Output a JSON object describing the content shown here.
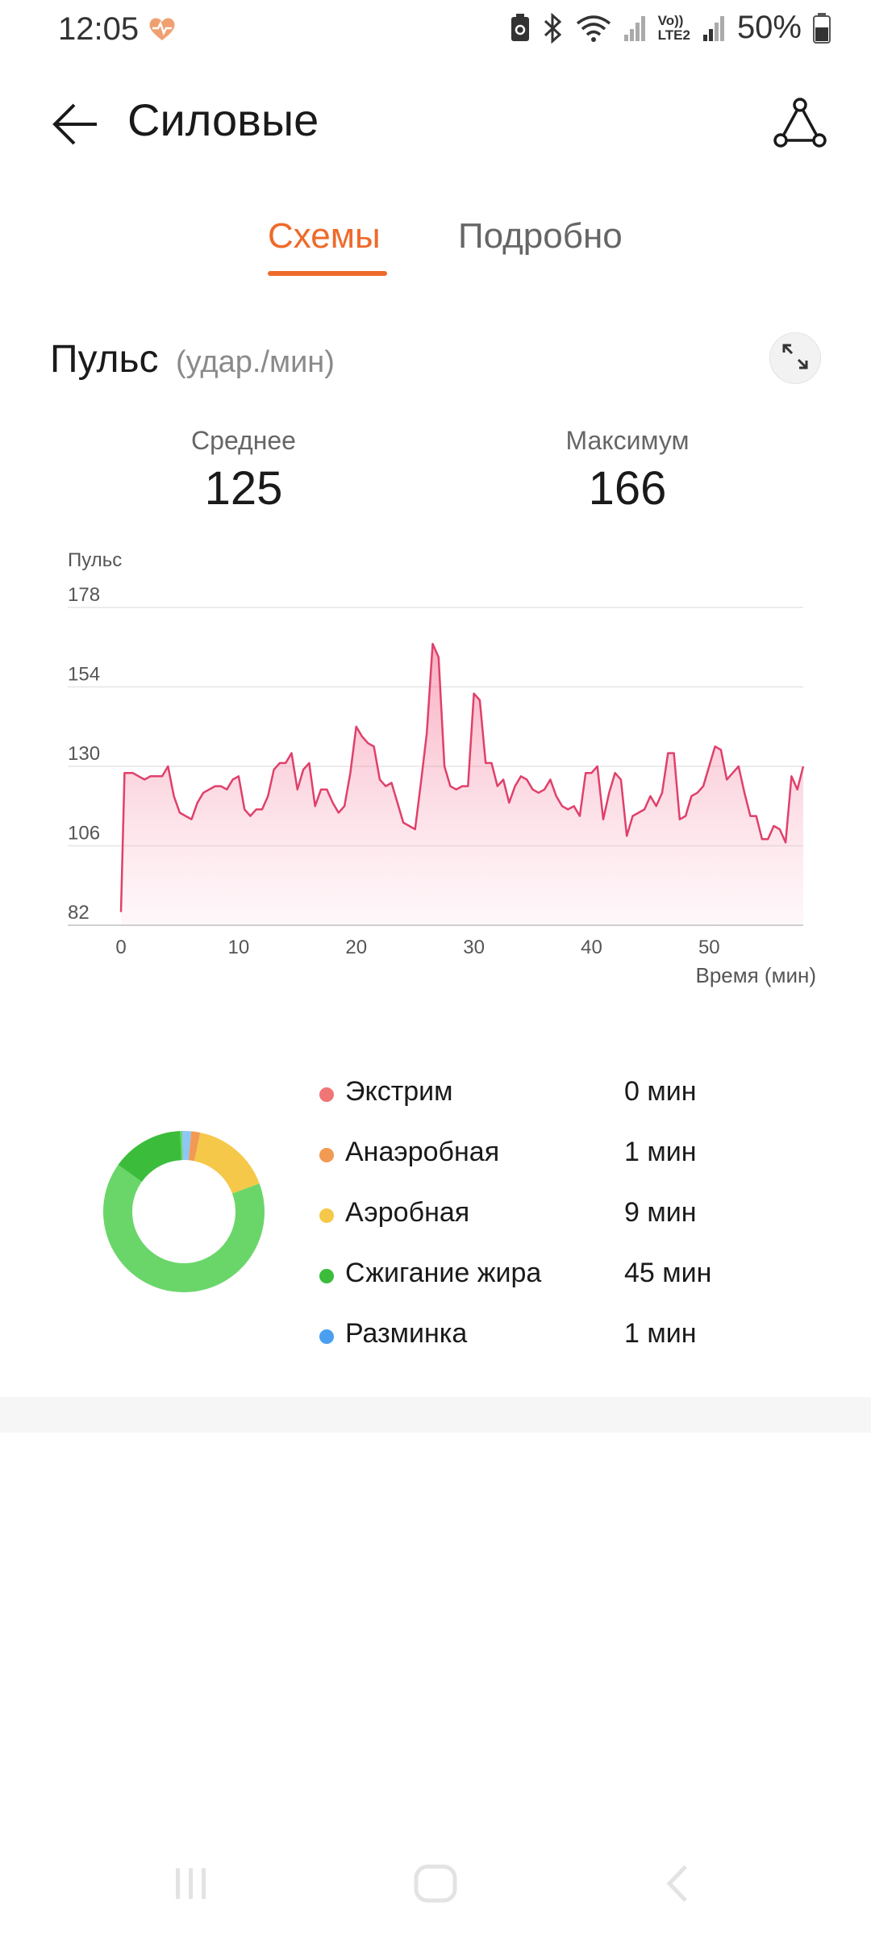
{
  "status_bar": {
    "time": "12:05",
    "lte_label_top": "Vo))",
    "lte_label_bottom": "LTE2",
    "battery_percent": "50%",
    "icons": [
      "heart-rate-icon",
      "battery-saver-icon",
      "bluetooth-icon",
      "wifi-icon",
      "signal-icon",
      "signal-icon-2",
      "battery-icon"
    ]
  },
  "header": {
    "title": "Силовые",
    "back_icon": "arrow-left-icon",
    "share_icon": "share-icon"
  },
  "tabs": [
    {
      "label": "Схемы",
      "active": true
    },
    {
      "label": "Подробно",
      "active": false
    }
  ],
  "pulse": {
    "title": "Пульс",
    "unit": "(удар./мин)",
    "avg_label": "Среднее",
    "avg_value": "125",
    "max_label": "Максимум",
    "max_value": "166"
  },
  "chart_data": {
    "type": "area",
    "ylabel": "Пульс",
    "xlabel": "Время (мин)",
    "yticks": [
      178,
      154,
      130,
      106,
      82
    ],
    "xticks": [
      0,
      10,
      20,
      30,
      40,
      50
    ],
    "ylim": [
      82,
      178
    ],
    "xlim": [
      0,
      58
    ],
    "grid": true,
    "color": "#e0406a",
    "series": [
      {
        "values": [
          [
            0,
            86
          ],
          [
            0.3,
            128
          ],
          [
            1,
            128
          ],
          [
            1.5,
            127
          ],
          [
            2,
            126
          ],
          [
            2.5,
            127
          ],
          [
            3,
            127
          ],
          [
            3.5,
            127
          ],
          [
            4,
            130
          ],
          [
            4.5,
            121
          ],
          [
            5,
            116
          ],
          [
            5.5,
            115
          ],
          [
            6,
            114
          ],
          [
            6.5,
            119
          ],
          [
            7,
            122
          ],
          [
            7.5,
            123
          ],
          [
            8,
            124
          ],
          [
            8.5,
            124
          ],
          [
            9,
            123
          ],
          [
            9.5,
            126
          ],
          [
            10,
            127
          ],
          [
            10.5,
            117
          ],
          [
            11,
            115
          ],
          [
            11.5,
            117
          ],
          [
            12,
            117
          ],
          [
            12.5,
            121
          ],
          [
            13,
            129
          ],
          [
            13.5,
            131
          ],
          [
            14,
            131
          ],
          [
            14.5,
            134
          ],
          [
            15,
            123
          ],
          [
            15.5,
            129
          ],
          [
            16,
            131
          ],
          [
            16.5,
            118
          ],
          [
            17,
            123
          ],
          [
            17.5,
            123
          ],
          [
            18,
            119
          ],
          [
            18.5,
            116
          ],
          [
            19,
            118
          ],
          [
            19.5,
            128
          ],
          [
            20,
            142
          ],
          [
            20.5,
            139
          ],
          [
            21,
            137
          ],
          [
            21.5,
            136
          ],
          [
            22,
            126
          ],
          [
            22.5,
            124
          ],
          [
            23,
            125
          ],
          [
            23.5,
            119
          ],
          [
            24,
            113
          ],
          [
            24.5,
            112
          ],
          [
            25,
            111
          ],
          [
            25.5,
            125
          ],
          [
            26,
            140
          ],
          [
            26.5,
            167
          ],
          [
            27,
            163
          ],
          [
            27.5,
            130
          ],
          [
            28,
            124
          ],
          [
            28.5,
            123
          ],
          [
            29,
            124
          ],
          [
            29.5,
            124
          ],
          [
            30,
            152
          ],
          [
            30.5,
            150
          ],
          [
            31,
            131
          ],
          [
            31.5,
            131
          ],
          [
            32,
            124
          ],
          [
            32.5,
            126
          ],
          [
            33,
            119
          ],
          [
            33.5,
            124
          ],
          [
            34,
            127
          ],
          [
            34.5,
            126
          ],
          [
            35,
            123
          ],
          [
            35.5,
            122
          ],
          [
            36,
            123
          ],
          [
            36.5,
            126
          ],
          [
            37,
            121
          ],
          [
            37.5,
            118
          ],
          [
            38,
            117
          ],
          [
            38.5,
            118
          ],
          [
            39,
            115
          ],
          [
            39.5,
            128
          ],
          [
            40,
            128
          ],
          [
            40.5,
            130
          ],
          [
            41,
            114
          ],
          [
            41.5,
            122
          ],
          [
            42,
            128
          ],
          [
            42.5,
            126
          ],
          [
            43,
            109
          ],
          [
            43.5,
            115
          ],
          [
            44,
            116
          ],
          [
            44.5,
            117
          ],
          [
            45,
            121
          ],
          [
            45.5,
            118
          ],
          [
            46,
            122
          ],
          [
            46.5,
            134
          ],
          [
            47,
            134
          ],
          [
            47.5,
            114
          ],
          [
            48,
            115
          ],
          [
            48.5,
            121
          ],
          [
            49,
            122
          ],
          [
            49.5,
            124
          ],
          [
            50,
            130
          ],
          [
            50.5,
            136
          ],
          [
            51,
            135
          ],
          [
            51.5,
            126
          ],
          [
            52,
            128
          ],
          [
            52.5,
            130
          ],
          [
            53,
            122
          ],
          [
            53.5,
            115
          ],
          [
            54,
            115
          ],
          [
            54.5,
            108
          ],
          [
            55,
            108
          ],
          [
            55.5,
            112
          ],
          [
            56,
            111
          ],
          [
            56.5,
            107
          ],
          [
            57,
            127
          ],
          [
            57.5,
            123
          ],
          [
            58,
            130
          ]
        ]
      }
    ]
  },
  "zones": {
    "items": [
      {
        "label": "Экстрим",
        "value": "0 мин",
        "color": "#f07575"
      },
      {
        "label": "Анаэробная",
        "value": "1 мин",
        "color": "#f29a52"
      },
      {
        "label": "Аэробная",
        "value": "9 мин",
        "color": "#f5c84a"
      },
      {
        "label": "Сжигание жира",
        "value": "45 мин",
        "color": "#3bbd3b"
      },
      {
        "label": "Разминка",
        "value": "1 мин",
        "color": "#4a9ff0"
      }
    ],
    "minutes": [
      0,
      1,
      9,
      45,
      1
    ]
  },
  "nav_bar": {
    "icons": [
      "recent-apps-icon",
      "home-icon",
      "back-nav-icon"
    ]
  }
}
